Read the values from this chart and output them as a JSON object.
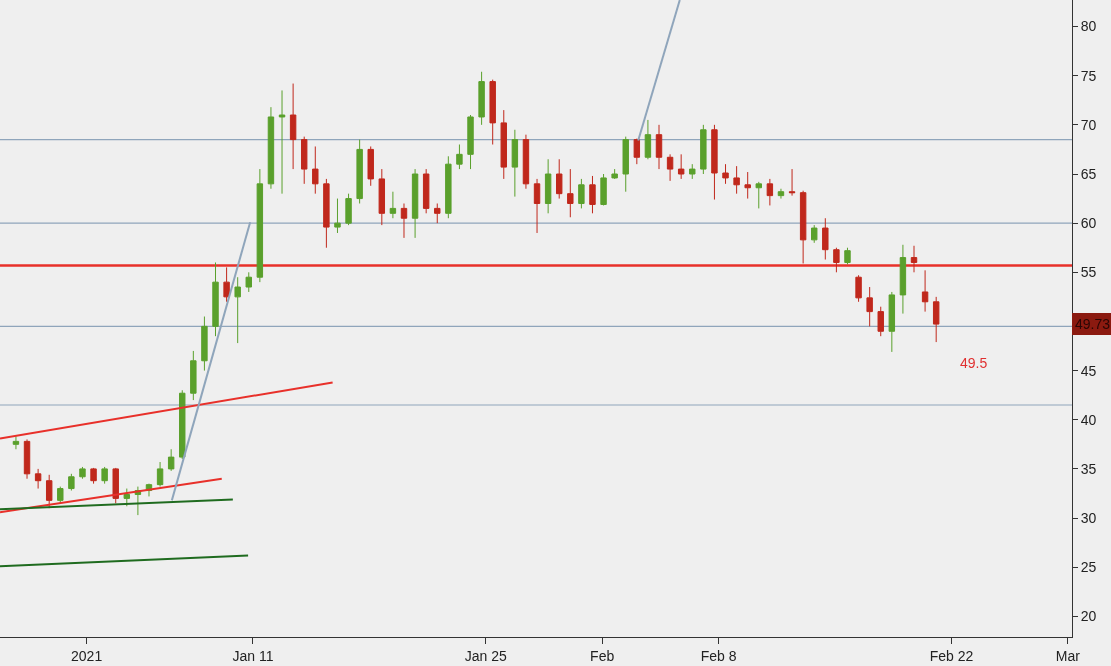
{
  "chart_data": {
    "type": "candlestick",
    "series": [
      {
        "colors": [
          "#5aa02c",
          "#c0281c",
          "#c0281c",
          "#c0281c",
          "#5aa02c",
          "#5aa02c",
          "#5aa02c",
          "#c0281c",
          "#5aa02c",
          "#c0281c",
          "#5aa02c",
          "#5aa02c",
          "#5aa02c",
          "#5aa02c",
          "#5aa02c",
          "#5aa02c",
          "#5aa02c",
          "#5aa02c",
          "#5aa02c",
          "#c0281c",
          "#5aa02c",
          "#5aa02c",
          "#5aa02c",
          "#5aa02c",
          "#5aa02c",
          "#c0281c",
          "#c0281c",
          "#c0281c",
          "#c0281c",
          "#5aa02c",
          "#5aa02c",
          "#5aa02c",
          "#c0281c",
          "#c0281c",
          "#5aa02c",
          "#c0281c",
          "#5aa02c",
          "#c0281c",
          "#c0281c",
          "#5aa02c",
          "#5aa02c",
          "#5aa02c",
          "#5aa02c",
          "#c0281c",
          "#c0281c",
          "#5aa02c",
          "#c0281c",
          "#c0281c",
          "#5aa02c",
          "#c0281c",
          "#c0281c",
          "#5aa02c",
          "#c0281c",
          "#5aa02c",
          "#5aa02c",
          "#5aa02c",
          "#c0281c",
          "#5aa02c",
          "#c0281c",
          "#c0281c",
          "#c0281c",
          "#5aa02c",
          "#5aa02c",
          "#c0281c",
          "#c0281c",
          "#c0281c",
          "#c0281c",
          "#5aa02c",
          "#c0281c",
          "#5aa02c",
          "#c0281c",
          "#c0281c",
          "#5aa02c",
          "#c0281c",
          "#c0281c",
          "#5aa02c",
          "#c0281c",
          "#c0281c",
          "#c0281c",
          "#5aa02c",
          "#5aa02c",
          "#c0281c",
          "#c0281c",
          "#c0281c"
        ],
        "x": [
          "2020-12-27T18:00",
          "2020-12-28T10:00",
          "2020-12-29T02:00",
          "2020-12-29T18:00",
          "2020-12-30T10:00",
          "2020-12-31T02:00",
          "2020-12-31T18:00",
          "2021-01-01T10:00",
          "2021-01-02T02:00",
          "2021-01-02T18:00",
          "2021-01-03T10:00",
          "2021-01-04T02:00",
          "2021-01-04T18:00",
          "2021-01-05T10:00",
          "2021-01-06T02:00",
          "2021-01-06T18:00",
          "2021-01-07T10:00",
          "2021-01-08T02:00",
          "2021-01-08T18:00",
          "2021-01-09T10:00",
          "2021-01-10T02:00",
          "2021-01-10T18:00",
          "2021-01-11T10:00",
          "2021-01-12T02:00",
          "2021-01-12T18:00",
          "2021-01-13T10:00",
          "2021-01-14T02:00",
          "2021-01-14T18:00",
          "2021-01-15T10:00",
          "2021-01-16T02:00",
          "2021-01-16T18:00",
          "2021-01-17T10:00",
          "2021-01-18T02:00",
          "2021-01-18T18:00",
          "2021-01-19T10:00",
          "2021-01-20T02:00",
          "2021-01-20T18:00",
          "2021-01-21T10:00",
          "2021-01-22T02:00",
          "2021-01-22T18:00",
          "2021-01-23T10:00",
          "2021-01-24T02:00",
          "2021-01-24T18:00",
          "2021-01-25T10:00",
          "2021-01-26T02:00",
          "2021-01-26T18:00",
          "2021-01-27T10:00",
          "2021-01-28T02:00",
          "2021-01-28T18:00",
          "2021-01-29T10:00",
          "2021-01-30T02:00",
          "2021-01-30T18:00",
          "2021-01-31T10:00",
          "2021-02-01T02:00",
          "2021-02-01T18:00",
          "2021-02-02T10:00",
          "2021-02-03T02:00",
          "2021-02-03T18:00",
          "2021-02-04T10:00",
          "2021-02-05T02:00",
          "2021-02-05T18:00",
          "2021-02-06T10:00",
          "2021-02-07T02:00",
          "2021-02-07T18:00",
          "2021-02-08T10:00",
          "2021-02-09T02:00",
          "2021-02-09T18:00",
          "2021-02-10T10:00",
          "2021-02-11T02:00",
          "2021-02-11T18:00",
          "2021-02-12T10:00",
          "2021-02-13T02:00",
          "2021-02-13T18:00",
          "2021-02-14T10:00",
          "2021-02-15T02:00",
          "2021-02-15T18:00",
          "2021-02-16T10:00",
          "2021-02-17T02:00",
          "2021-02-17T18:00",
          "2021-02-18T10:00",
          "2021-02-19T02:00",
          "2021-02-19T18:00",
          "2021-02-20T10:00",
          "2021-02-21T02:00"
        ],
        "ohlc": [
          [
            37.5,
            38.3,
            37,
            37.8
          ],
          [
            37.8,
            38,
            34,
            34.5
          ],
          [
            34.5,
            35,
            33,
            33.8
          ],
          [
            33.8,
            34.4,
            31,
            31.8
          ],
          [
            31.8,
            33.2,
            31.5,
            33
          ],
          [
            33,
            34.5,
            32.8,
            34.2
          ],
          [
            34.2,
            35.2,
            34,
            35
          ],
          [
            35,
            35.1,
            33.5,
            33.8
          ],
          [
            33.8,
            35.2,
            33.5,
            35
          ],
          [
            35,
            35.1,
            31.5,
            32
          ],
          [
            32,
            33,
            31.2,
            32.4
          ],
          [
            32.4,
            33.2,
            30.3,
            32.8
          ],
          [
            32.8,
            33.5,
            32.2,
            33.4
          ],
          [
            33.4,
            35.7,
            33.2,
            35
          ],
          [
            35,
            37,
            34.8,
            36.2
          ],
          [
            36.2,
            43,
            36,
            42.7
          ],
          [
            42.7,
            47,
            42,
            46
          ],
          [
            46,
            50.5,
            45,
            49.5
          ],
          [
            49.5,
            56,
            48.5,
            54
          ],
          [
            54,
            55.5,
            52,
            52.5
          ],
          [
            52.5,
            54.5,
            47.8,
            53.5
          ],
          [
            53.5,
            55,
            53,
            54.5
          ],
          [
            54.5,
            65.5,
            54,
            64
          ],
          [
            64,
            71.8,
            63.5,
            70.8
          ],
          [
            70.8,
            73.5,
            63,
            71
          ],
          [
            71,
            74.2,
            65.5,
            68.5
          ],
          [
            68.5,
            68.8,
            64,
            65.5
          ],
          [
            65.5,
            67.8,
            63,
            64
          ],
          [
            64,
            64.5,
            57.5,
            59.6
          ],
          [
            59.6,
            62.5,
            59,
            60
          ],
          [
            60,
            63,
            59.8,
            62.5
          ],
          [
            62.5,
            68.5,
            62,
            67.5
          ],
          [
            67.5,
            67.8,
            63.8,
            64.5
          ],
          [
            64.5,
            65.5,
            59.8,
            61
          ],
          [
            61,
            63.2,
            60.5,
            61.5
          ],
          [
            61.5,
            62,
            58.5,
            60.5
          ],
          [
            60.5,
            65.5,
            58.5,
            65
          ],
          [
            65,
            65.5,
            61,
            61.5
          ],
          [
            61.5,
            62,
            60,
            61
          ],
          [
            61,
            66.8,
            60.5,
            66
          ],
          [
            66,
            68,
            65.5,
            67
          ],
          [
            67,
            71,
            65.5,
            70.8
          ],
          [
            70.8,
            75.4,
            70,
            74.4
          ],
          [
            74.4,
            74.6,
            68,
            70.2
          ],
          [
            70.2,
            71.5,
            64.5,
            65.7
          ],
          [
            65.7,
            69.5,
            62.7,
            68.5
          ],
          [
            68.5,
            69,
            63.5,
            64
          ],
          [
            64,
            64.5,
            59,
            62
          ],
          [
            62,
            66.5,
            61,
            65
          ],
          [
            65,
            66.5,
            62.5,
            63
          ],
          [
            63,
            65.5,
            60.6,
            62
          ],
          [
            62,
            64.5,
            61.5,
            63.9
          ],
          [
            63.9,
            64.8,
            61,
            61.9
          ],
          [
            61.9,
            65,
            61.8,
            64.6
          ],
          [
            64.6,
            65.5,
            64.5,
            65
          ],
          [
            65,
            68.8,
            63.2,
            68.5
          ],
          [
            68.5,
            68.6,
            66,
            66.7
          ],
          [
            66.7,
            70.5,
            66.5,
            69
          ],
          [
            69,
            70,
            65.5,
            66.7
          ],
          [
            66.7,
            67,
            64.3,
            65.5
          ],
          [
            65.5,
            67,
            64.5,
            65
          ],
          [
            65,
            66,
            64.5,
            65.5
          ],
          [
            65.5,
            70,
            65,
            69.5
          ],
          [
            69.5,
            70,
            62.4,
            65.1
          ],
          [
            65.1,
            66,
            64,
            64.6
          ],
          [
            64.6,
            65.8,
            63,
            63.9
          ],
          [
            63.9,
            65.2,
            62.5,
            63.6
          ],
          [
            63.6,
            64.2,
            61.5,
            64
          ],
          [
            64,
            64.5,
            61.8,
            62.8
          ],
          [
            62.8,
            63.5,
            62.5,
            63.2
          ],
          [
            63.2,
            65.5,
            62.8,
            63.1
          ],
          [
            63.1,
            63.3,
            55.9,
            58.3
          ],
          [
            58.3,
            59.8,
            58,
            59.5
          ],
          [
            59.5,
            60.5,
            56.3,
            57.3
          ],
          [
            57.3,
            57.5,
            55,
            56
          ],
          [
            56,
            57.5,
            55.8,
            57.2
          ],
          [
            54.5,
            54.7,
            52,
            52.4
          ],
          [
            52.4,
            53.5,
            49.5,
            51
          ],
          [
            51,
            51.5,
            48.5,
            49
          ],
          [
            49,
            53,
            46.9,
            52.7
          ],
          [
            52.7,
            57.8,
            50.8,
            56.5
          ],
          [
            56.5,
            57.7,
            55,
            56
          ],
          [
            53,
            55.2,
            51,
            52
          ],
          [
            52,
            52.5,
            47.9,
            49.73
          ]
        ]
      },
      {
        "type": "line",
        "color": "#e8302a",
        "x": [
          "2020-12-26T19:00",
          "2021-01-15T19:00"
        ],
        "values": [
          38.1,
          43.8
        ]
      },
      {
        "type": "line",
        "color": "#e8302a",
        "x": [
          "2020-12-26T19:00",
          "2021-01-09T03:00"
        ],
        "values": [
          30.6,
          34.0
        ]
      },
      {
        "type": "line",
        "color": "#1f6b1f",
        "x": [
          "2020-12-26T19:00",
          "2021-01-09T19:00"
        ],
        "values": [
          30.9,
          31.9
        ]
      },
      {
        "type": "line",
        "color": "#1f6b1f",
        "x": [
          "2020-12-26T19:00",
          "2021-01-10T17:00"
        ],
        "values": [
          25.1,
          26.2
        ]
      },
      {
        "type": "line",
        "color": "#8fa5bb",
        "x": [
          "2021-01-06T03:00",
          "2021-01-10T20:00"
        ],
        "values": [
          31.8,
          60.1
        ]
      },
      {
        "type": "line",
        "color": "#8fa5bb",
        "x": [
          "2021-02-03T04:00",
          "2021-02-05T16:00"
        ],
        "values": [
          68.4,
          82.7
        ]
      }
    ],
    "ref_lines": [
      {
        "axis": "y",
        "value": 68.5,
        "color": "#8fa5bb"
      },
      {
        "axis": "y",
        "value": 60,
        "color": "#8fa5bb"
      },
      {
        "axis": "y",
        "value": 55.7,
        "color": "#e8302a"
      },
      {
        "axis": "y",
        "value": 49.5,
        "color": "#8fa5bb"
      },
      {
        "axis": "y",
        "value": 41.5,
        "color": "#8fa5bb"
      }
    ],
    "annotations": [
      {
        "text": "49.73",
        "y": 49.73
      },
      "49.5"
    ],
    "xlim": [
      "2020-12-26T19:00",
      "2021-03-01T06:00"
    ],
    "xticks": [
      {
        "value": "2021-01-01",
        "label": "2021"
      },
      {
        "value": "2021-01-11",
        "label": "Jan 11"
      },
      {
        "value": "2021-01-25",
        "label": "Jan 25"
      },
      {
        "value": "2021-02-01",
        "label": "Feb"
      },
      {
        "value": "2021-02-08",
        "label": "Feb 8"
      },
      {
        "value": "2021-02-22",
        "label": "Feb 22"
      },
      {
        "value": "2021-03-01",
        "label": "Mar"
      }
    ],
    "ylim": [
      17.9,
      82.7
    ],
    "yticks": [
      20,
      25,
      30,
      35,
      40,
      45,
      55,
      60,
      65,
      70,
      75,
      80
    ],
    "grid": false
  }
}
